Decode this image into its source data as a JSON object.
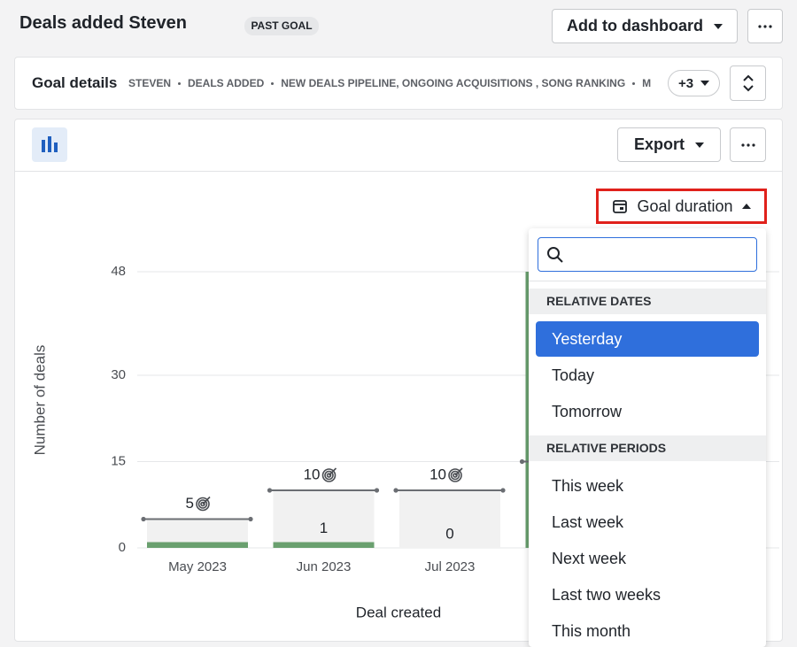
{
  "header": {
    "title": "Deals added Steven",
    "badge": "PAST GOAL",
    "add_button": "Add to dashboard"
  },
  "goal_details": {
    "title": "Goal details",
    "filters": [
      "STEVEN",
      "DEALS ADDED",
      "NEW DEALS PIPELINE, ONGOING ACQUISITIONS , SONG RANKING",
      "M"
    ],
    "more": "+3"
  },
  "toolbar": {
    "export": "Export",
    "goal_duration": "Goal duration"
  },
  "chart_data": {
    "type": "bar",
    "y_label": "Number of deals",
    "x_label": "Deal created",
    "categories": [
      "May 2023",
      "Jun 2023",
      "Jul 2023",
      null
    ],
    "values": [
      1,
      1,
      0,
      48
    ],
    "value_labels": [
      null,
      "1",
      "0",
      null
    ],
    "color": "#6aa06f",
    "goals": [
      5,
      10,
      10,
      15
    ],
    "goal_color": "#f1f1f1",
    "ylim": [
      0,
      48
    ],
    "yticks": [
      0,
      15,
      30,
      48
    ],
    "grid": true
  },
  "dropdown": {
    "sections": [
      {
        "title": "RELATIVE DATES",
        "items": [
          "Yesterday",
          "Today",
          "Tomorrow"
        ],
        "selected": 0
      },
      {
        "title": "RELATIVE PERIODS",
        "items": [
          "This week",
          "Last week",
          "Next week",
          "Last two weeks",
          "This month"
        ]
      }
    ]
  }
}
